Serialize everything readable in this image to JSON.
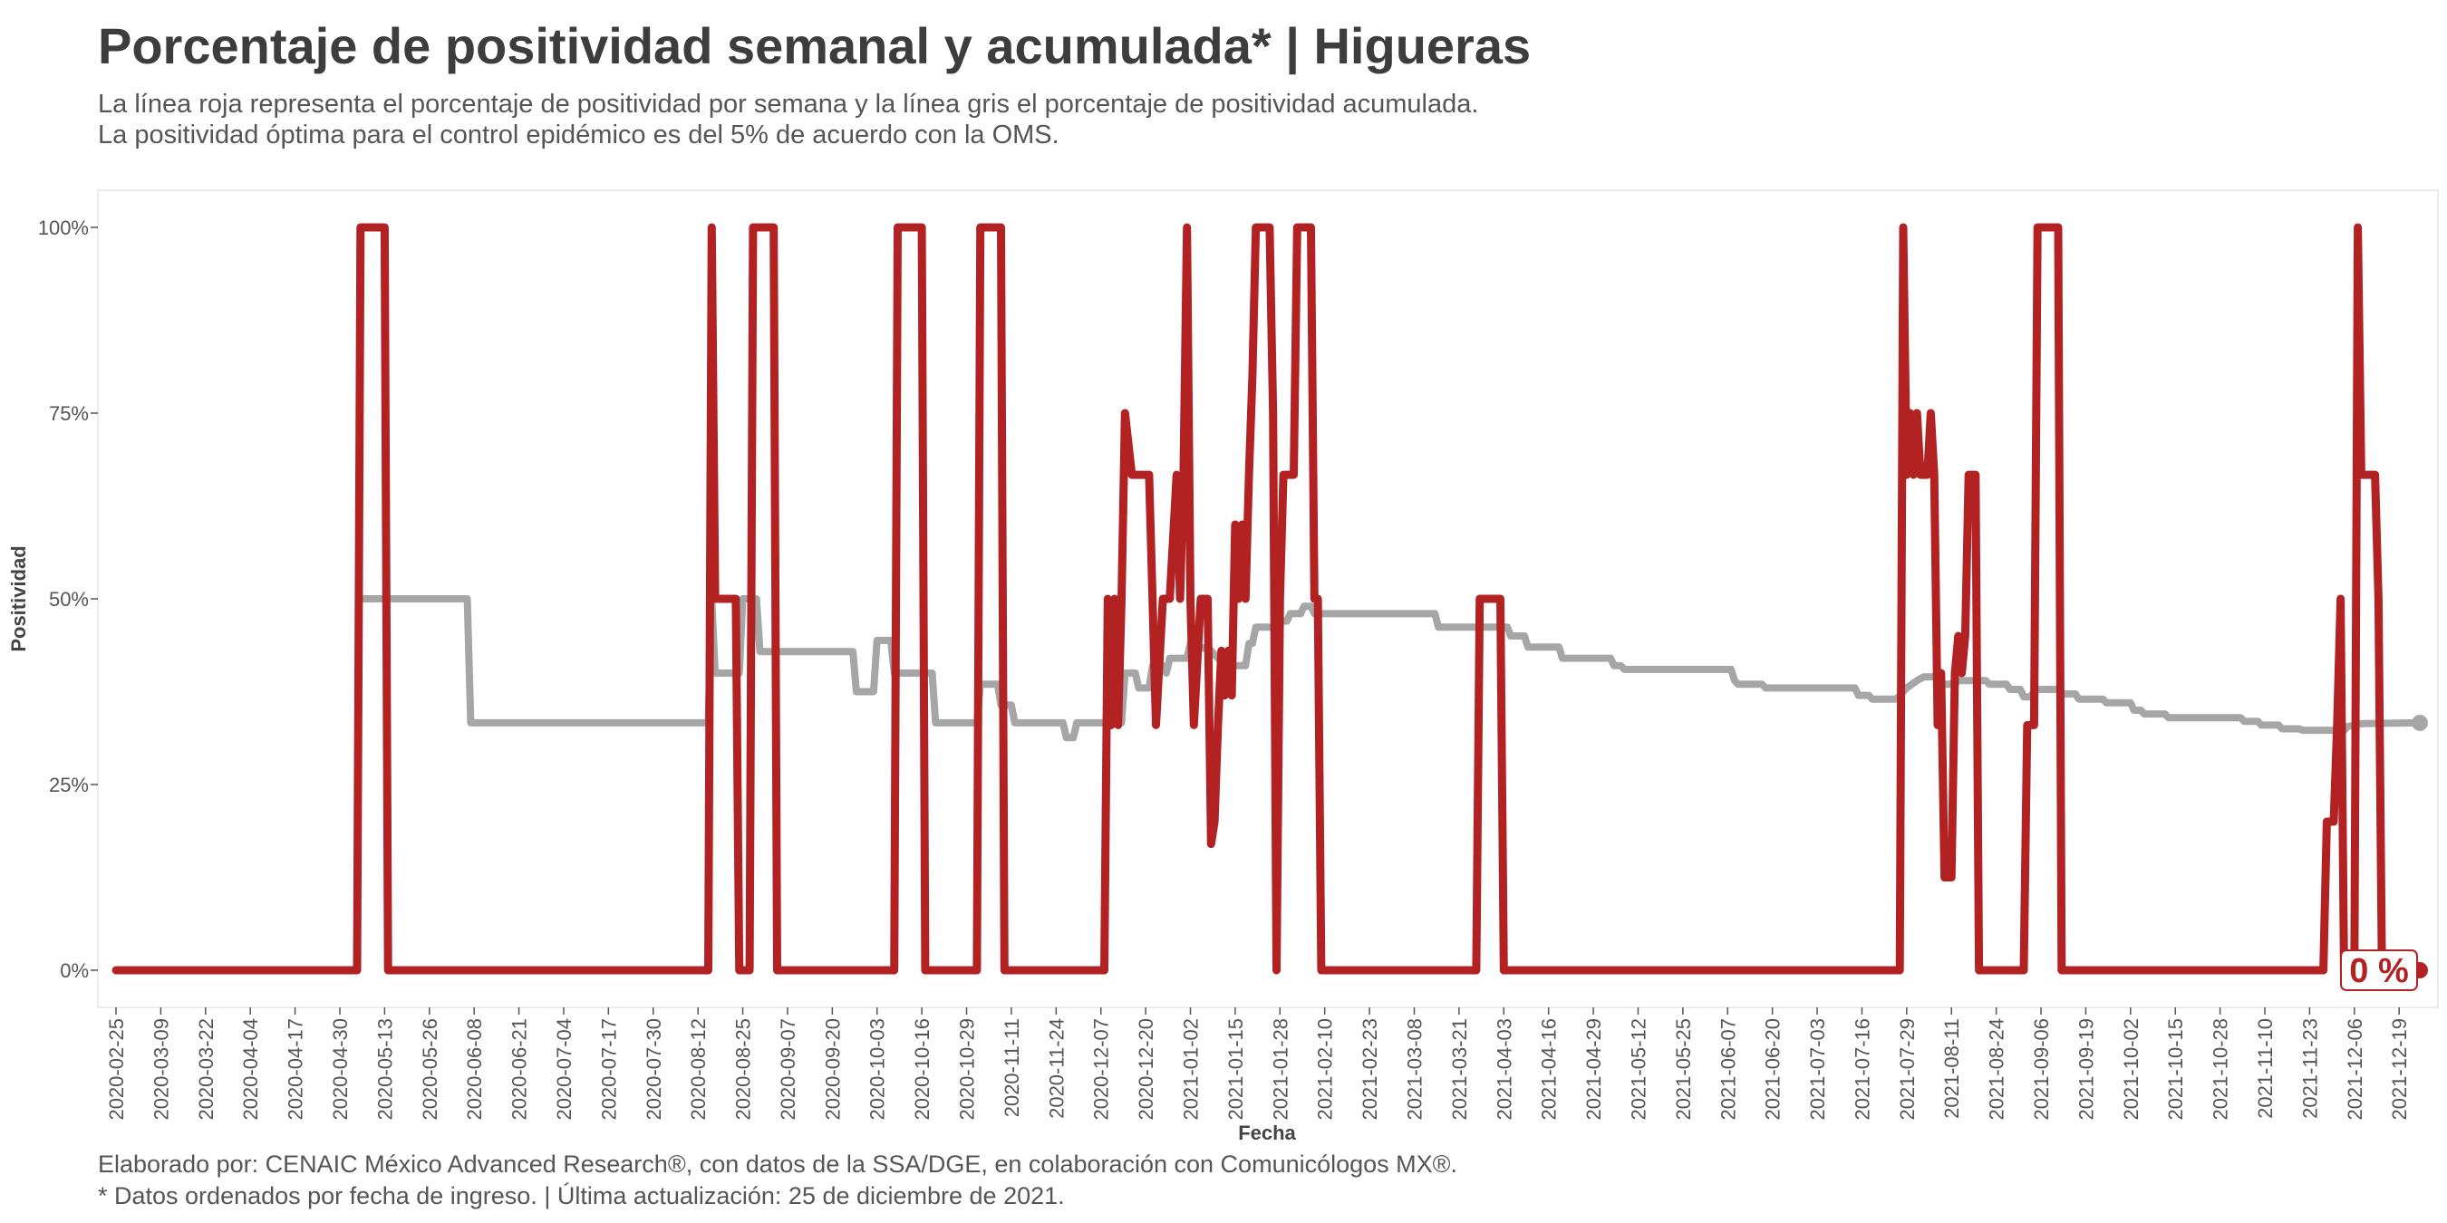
{
  "title": "Porcentaje de positividad semanal y acumulada* | Higueras",
  "subtitle": [
    "La línea roja representa el porcentaje de positividad por semana y la línea gris el porcentaje de positividad acumulada.",
    "La positividad óptima para el control epidémico es del 5% de acuerdo con la OMS."
  ],
  "caption": [
    "Elaborado por: CENAIC México Advanced Research®, con datos de la SSA/DGE, en colaboración con Comunicólogos MX®.",
    "* Datos ordenados por fecha de ingreso. | Última actualización: 25 de diciembre de 2021."
  ],
  "chart_data": {
    "type": "line",
    "xlabel": "Fecha",
    "ylabel": "Positividad",
    "xlim": [
      "2020-02-25",
      "2021-12-25"
    ],
    "ylim": [
      0,
      100
    ],
    "x_ticks": [
      "2020-02-25",
      "2020-03-09",
      "2020-03-22",
      "2020-04-04",
      "2020-04-17",
      "2020-04-30",
      "2020-05-13",
      "2020-05-26",
      "2020-06-08",
      "2020-06-21",
      "2020-07-04",
      "2020-07-17",
      "2020-07-30",
      "2020-08-12",
      "2020-08-25",
      "2020-09-07",
      "2020-09-20",
      "2020-10-03",
      "2020-10-16",
      "2020-10-29",
      "2020-11-11",
      "2020-11-24",
      "2020-12-07",
      "2020-12-20",
      "2021-01-02",
      "2021-01-15",
      "2021-01-28",
      "2021-02-10",
      "2021-02-23",
      "2021-03-08",
      "2021-03-21",
      "2021-04-03",
      "2021-04-16",
      "2021-04-29",
      "2021-05-12",
      "2021-05-25",
      "2021-06-07",
      "2021-06-20",
      "2021-07-03",
      "2021-07-16",
      "2021-07-29",
      "2021-08-11",
      "2021-08-24",
      "2021-09-06",
      "2021-09-19",
      "2021-10-02",
      "2021-10-15",
      "2021-10-28",
      "2021-11-10",
      "2021-11-23",
      "2021-12-06",
      "2021-12-19"
    ],
    "y_ticks": [
      {
        "value": 0,
        "label": "0%"
      },
      {
        "value": 25,
        "label": "25%"
      },
      {
        "value": 50,
        "label": "50%"
      },
      {
        "value": 75,
        "label": "75%"
      },
      {
        "value": 100,
        "label": "100%"
      }
    ],
    "end_label": "0 %",
    "grid": false,
    "series": [
      {
        "color": "#b22222",
        "points": [
          [
            "2020-02-25",
            0
          ],
          [
            "2020-05-05",
            0
          ],
          [
            "2020-05-06",
            100
          ],
          [
            "2020-05-13",
            100
          ],
          [
            "2020-05-14",
            0
          ],
          [
            "2020-08-15",
            0
          ],
          [
            "2020-08-16",
            100
          ],
          [
            "2020-08-17",
            50
          ],
          [
            "2020-08-23",
            50
          ],
          [
            "2020-08-24",
            0
          ],
          [
            "2020-08-27",
            0
          ],
          [
            "2020-08-28",
            100
          ],
          [
            "2020-09-03",
            100
          ],
          [
            "2020-09-04",
            0
          ],
          [
            "2020-10-08",
            0
          ],
          [
            "2020-10-09",
            100
          ],
          [
            "2020-10-16",
            100
          ],
          [
            "2020-10-17",
            0
          ],
          [
            "2020-11-01",
            0
          ],
          [
            "2020-11-02",
            100
          ],
          [
            "2020-11-08",
            100
          ],
          [
            "2020-11-09",
            0
          ],
          [
            "2020-12-08",
            0
          ],
          [
            "2020-12-09",
            50
          ],
          [
            "2020-12-10",
            33
          ],
          [
            "2020-12-11",
            50
          ],
          [
            "2020-12-12",
            33
          ],
          [
            "2020-12-13",
            50
          ],
          [
            "2020-12-14",
            75
          ],
          [
            "2020-12-16",
            66.7
          ],
          [
            "2020-12-21",
            66.7
          ],
          [
            "2020-12-22",
            50
          ],
          [
            "2020-12-23",
            33
          ],
          [
            "2020-12-25",
            50
          ],
          [
            "2020-12-27",
            50
          ],
          [
            "2020-12-29",
            66.7
          ],
          [
            "2020-12-30",
            50
          ],
          [
            "2020-12-31",
            66.7
          ],
          [
            "2021-01-01",
            100
          ],
          [
            "2021-01-02",
            50
          ],
          [
            "2021-01-03",
            33
          ],
          [
            "2021-01-05",
            50
          ],
          [
            "2021-01-07",
            50
          ],
          [
            "2021-01-08",
            17
          ],
          [
            "2021-01-09",
            20
          ],
          [
            "2021-01-10",
            33
          ],
          [
            "2021-01-11",
            43
          ],
          [
            "2021-01-12",
            37
          ],
          [
            "2021-01-13",
            43
          ],
          [
            "2021-01-14",
            37
          ],
          [
            "2021-01-15",
            60
          ],
          [
            "2021-01-16",
            50
          ],
          [
            "2021-01-17",
            60
          ],
          [
            "2021-01-18",
            50
          ],
          [
            "2021-01-19",
            66.7
          ],
          [
            "2021-01-20",
            80
          ],
          [
            "2021-01-21",
            100
          ],
          [
            "2021-01-25",
            100
          ],
          [
            "2021-01-26",
            75
          ],
          [
            "2021-01-27",
            0
          ],
          [
            "2021-01-28",
            50
          ],
          [
            "2021-01-29",
            66.7
          ],
          [
            "2021-02-01",
            66.7
          ],
          [
            "2021-02-02",
            100
          ],
          [
            "2021-02-06",
            100
          ],
          [
            "2021-02-07",
            50
          ],
          [
            "2021-02-08",
            50
          ],
          [
            "2021-02-09",
            0
          ],
          [
            "2021-03-26",
            0
          ],
          [
            "2021-03-27",
            50
          ],
          [
            "2021-04-02",
            50
          ],
          [
            "2021-04-03",
            0
          ],
          [
            "2021-07-27",
            0
          ],
          [
            "2021-07-28",
            100
          ],
          [
            "2021-07-29",
            66.7
          ],
          [
            "2021-07-30",
            75
          ],
          [
            "2021-07-31",
            66.7
          ],
          [
            "2021-08-01",
            75
          ],
          [
            "2021-08-02",
            66.7
          ],
          [
            "2021-08-04",
            66.7
          ],
          [
            "2021-08-05",
            75
          ],
          [
            "2021-08-06",
            66.7
          ],
          [
            "2021-08-07",
            33
          ],
          [
            "2021-08-08",
            40
          ],
          [
            "2021-08-09",
            12.5
          ],
          [
            "2021-08-11",
            12.5
          ],
          [
            "2021-08-12",
            40
          ],
          [
            "2021-08-13",
            45
          ],
          [
            "2021-08-14",
            40
          ],
          [
            "2021-08-15",
            45
          ],
          [
            "2021-08-16",
            66.7
          ],
          [
            "2021-08-18",
            66.7
          ],
          [
            "2021-08-19",
            0
          ],
          [
            "2021-09-01",
            0
          ],
          [
            "2021-09-02",
            33
          ],
          [
            "2021-09-04",
            33
          ],
          [
            "2021-09-05",
            100
          ],
          [
            "2021-09-11",
            100
          ],
          [
            "2021-09-12",
            0
          ],
          [
            "2021-11-27",
            0
          ],
          [
            "2021-11-28",
            20
          ],
          [
            "2021-11-30",
            20
          ],
          [
            "2021-12-01",
            33
          ],
          [
            "2021-12-02",
            50
          ],
          [
            "2021-12-03",
            0
          ],
          [
            "2021-12-06",
            0
          ],
          [
            "2021-12-07",
            100
          ],
          [
            "2021-12-08",
            66.7
          ],
          [
            "2021-12-12",
            66.7
          ],
          [
            "2021-12-13",
            50
          ],
          [
            "2021-12-14",
            0
          ],
          [
            "2021-12-25",
            0
          ]
        ]
      },
      {
        "color": "#a6a6a6",
        "points": [
          [
            "2020-05-06",
            50
          ],
          [
            "2020-06-06",
            50
          ],
          [
            "2020-06-07",
            33.3
          ],
          [
            "2020-08-15",
            33.3
          ],
          [
            "2020-08-16",
            50
          ],
          [
            "2020-08-17",
            40
          ],
          [
            "2020-08-24",
            40
          ],
          [
            "2020-08-25",
            50
          ],
          [
            "2020-08-29",
            50
          ],
          [
            "2020-08-30",
            42.9
          ],
          [
            "2020-09-26",
            42.9
          ],
          [
            "2020-09-27",
            37.5
          ],
          [
            "2020-10-02",
            37.5
          ],
          [
            "2020-10-03",
            44.4
          ],
          [
            "2020-10-07",
            44.4
          ],
          [
            "2020-10-08",
            40
          ],
          [
            "2020-10-19",
            40
          ],
          [
            "2020-10-20",
            33.3
          ],
          [
            "2020-11-01",
            33.3
          ],
          [
            "2020-11-02",
            38.5
          ],
          [
            "2020-11-07",
            38.5
          ],
          [
            "2020-11-08",
            35.7
          ],
          [
            "2020-11-11",
            35.7
          ],
          [
            "2020-11-12",
            33.3
          ],
          [
            "2020-11-26",
            33.3
          ],
          [
            "2020-11-27",
            31.3
          ],
          [
            "2020-11-29",
            31.3
          ],
          [
            "2020-11-30",
            33.3
          ],
          [
            "2020-12-13",
            33.3
          ],
          [
            "2020-12-14",
            40
          ],
          [
            "2020-12-17",
            40
          ],
          [
            "2020-12-18",
            38
          ],
          [
            "2020-12-21",
            38
          ],
          [
            "2020-12-22",
            41
          ],
          [
            "2020-12-25",
            41
          ],
          [
            "2020-12-26",
            40
          ],
          [
            "2020-12-27",
            42
          ],
          [
            "2021-01-01",
            42
          ],
          [
            "2021-01-02",
            44
          ],
          [
            "2021-01-08",
            43
          ],
          [
            "2021-01-10",
            42
          ],
          [
            "2021-01-13",
            41
          ],
          [
            "2021-01-18",
            41
          ],
          [
            "2021-01-19",
            44
          ],
          [
            "2021-01-20",
            44
          ],
          [
            "2021-01-21",
            46.2
          ],
          [
            "2021-01-27",
            46.2
          ],
          [
            "2021-01-28",
            47
          ],
          [
            "2021-01-30",
            47
          ],
          [
            "2021-01-31",
            48
          ],
          [
            "2021-02-03",
            48
          ],
          [
            "2021-02-04",
            49
          ],
          [
            "2021-02-06",
            49
          ],
          [
            "2021-02-07",
            48
          ],
          [
            "2021-03-14",
            48
          ],
          [
            "2021-03-15",
            46.2
          ],
          [
            "2021-04-04",
            46.2
          ],
          [
            "2021-04-05",
            45
          ],
          [
            "2021-04-09",
            45
          ],
          [
            "2021-04-10",
            43.5
          ],
          [
            "2021-04-19",
            43.5
          ],
          [
            "2021-04-20",
            42
          ],
          [
            "2021-05-04",
            42
          ],
          [
            "2021-05-05",
            41
          ],
          [
            "2021-05-07",
            41
          ],
          [
            "2021-05-08",
            40.5
          ],
          [
            "2021-06-08",
            40.5
          ],
          [
            "2021-06-09",
            39
          ],
          [
            "2021-06-10",
            38.5
          ],
          [
            "2021-06-17",
            38.5
          ],
          [
            "2021-06-18",
            38
          ],
          [
            "2021-07-14",
            38
          ],
          [
            "2021-07-15",
            37
          ],
          [
            "2021-07-18",
            37
          ],
          [
            "2021-07-19",
            36.5
          ],
          [
            "2021-07-26",
            36.5
          ],
          [
            "2021-07-27",
            37
          ],
          [
            "2021-07-29",
            38
          ],
          [
            "2021-08-01",
            39
          ],
          [
            "2021-08-03",
            39.5
          ],
          [
            "2021-08-07",
            39.5
          ],
          [
            "2021-08-08",
            38.5
          ],
          [
            "2021-08-12",
            38.5
          ],
          [
            "2021-08-13",
            39
          ],
          [
            "2021-08-21",
            39
          ],
          [
            "2021-08-22",
            38.5
          ],
          [
            "2021-08-27",
            38.5
          ],
          [
            "2021-08-28",
            37.8
          ],
          [
            "2021-08-31",
            37.8
          ],
          [
            "2021-09-01",
            36.8
          ],
          [
            "2021-09-03",
            36.8
          ],
          [
            "2021-09-04",
            37.5
          ],
          [
            "2021-09-05",
            37.8
          ],
          [
            "2021-09-11",
            37.8
          ],
          [
            "2021-09-12",
            37.2
          ],
          [
            "2021-09-16",
            37.2
          ],
          [
            "2021-09-17",
            36.5
          ],
          [
            "2021-09-24",
            36.5
          ],
          [
            "2021-09-25",
            36
          ],
          [
            "2021-10-02",
            36
          ],
          [
            "2021-10-03",
            35
          ],
          [
            "2021-10-05",
            35
          ],
          [
            "2021-10-06",
            34.5
          ],
          [
            "2021-10-12",
            34.5
          ],
          [
            "2021-10-13",
            34
          ],
          [
            "2021-11-03",
            34
          ],
          [
            "2021-11-04",
            33.5
          ],
          [
            "2021-11-08",
            33.5
          ],
          [
            "2021-11-09",
            33
          ],
          [
            "2021-11-14",
            33
          ],
          [
            "2021-11-15",
            32.5
          ],
          [
            "2021-11-20",
            32.5
          ],
          [
            "2021-11-21",
            32.3
          ],
          [
            "2021-12-03",
            32.3
          ],
          [
            "2021-12-04",
            32.8
          ],
          [
            "2021-12-08",
            33.2
          ],
          [
            "2021-12-25",
            33.3
          ]
        ]
      }
    ]
  }
}
